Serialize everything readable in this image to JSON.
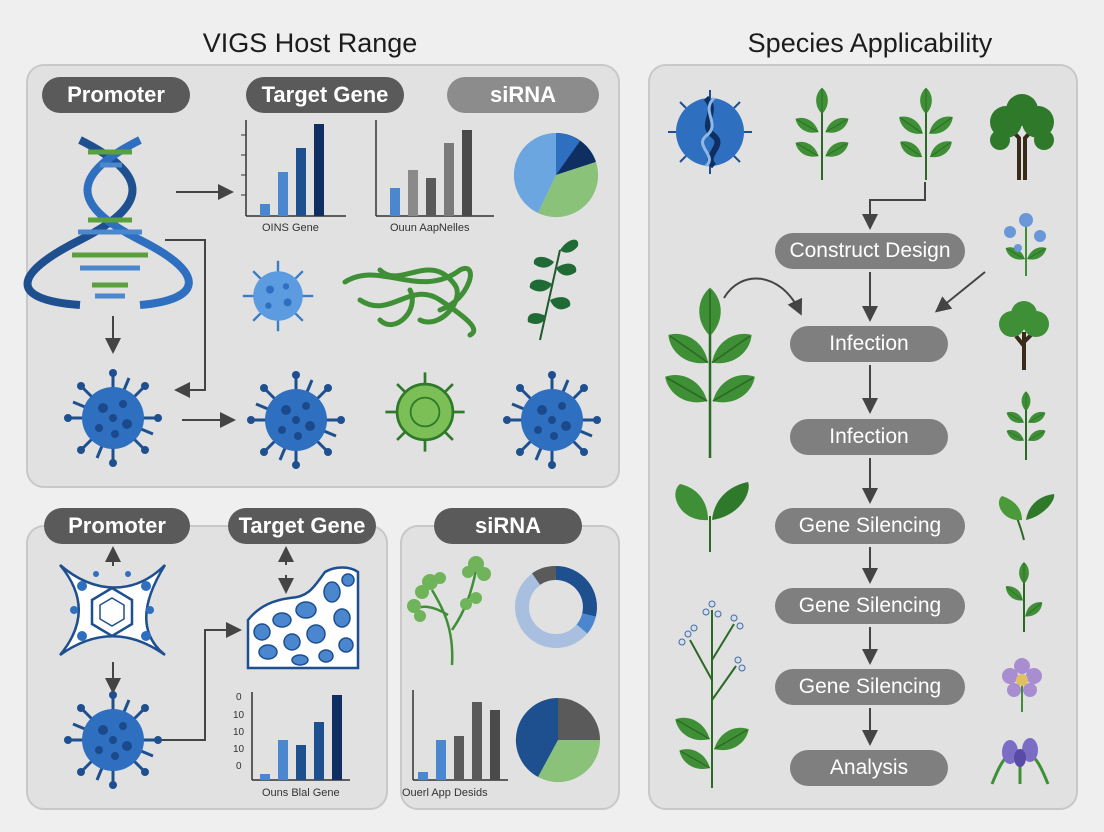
{
  "left_title": "VIGS Host Range",
  "right_title": "Species Applicability",
  "top_panel": {
    "pills": [
      "Promoter",
      "Target Gene",
      "siRNA"
    ],
    "chart1_label": "OINS Gene",
    "chart2_label": "Ouun AapNelles"
  },
  "bottom_panel": {
    "pills": [
      "Promoter",
      "Target Gene",
      "siRNA"
    ],
    "chart1_label": "Ouns Blal Gene",
    "chart1_ticks": [
      "0",
      "10",
      "10",
      "10",
      "0"
    ],
    "chart2_label": "Ouerl App Desids"
  },
  "flow_steps": [
    "Construct Design",
    "Infection",
    "Infection",
    "Gene Silencing",
    "Gene Silencing",
    "Gene Silencing",
    "Analysis"
  ],
  "colors": {
    "dark_blue": "#1e4f8f",
    "navy": "#0f2f63",
    "mid_blue": "#4a87cf",
    "light_blue": "#8fb8e3",
    "green": "#5aa13e",
    "dark_green": "#2e7a2a",
    "gray": "#5a5a5a"
  },
  "icons": [
    "dna-helix-icon",
    "virus-icon",
    "leaf-icon",
    "tree-icon",
    "flower-icon",
    "cell-icon"
  ]
}
